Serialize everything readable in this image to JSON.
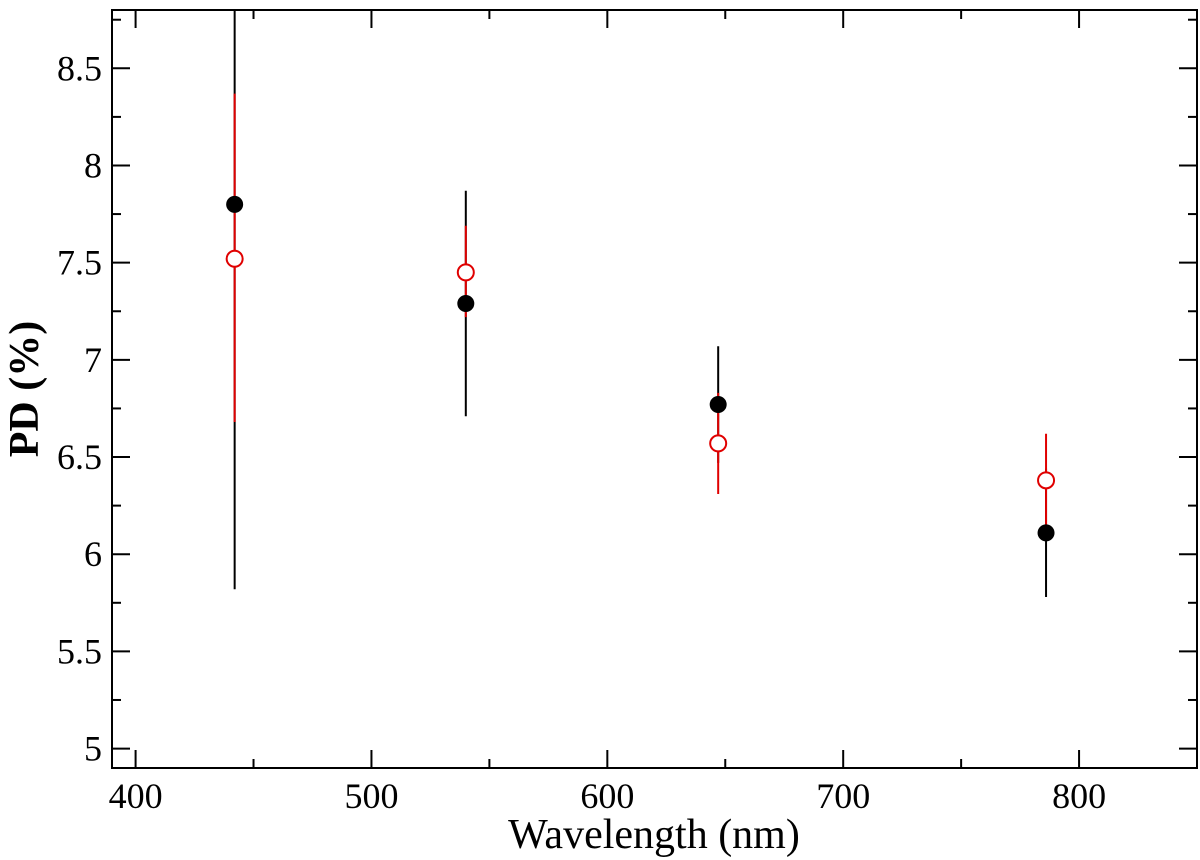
{
  "chart_data": {
    "type": "scatter",
    "title": "",
    "xlabel": "Wavelength (nm)",
    "ylabel": "PD (%)",
    "xlim": [
      390,
      850
    ],
    "ylim": [
      4.9,
      8.8
    ],
    "x_major_ticks": [
      400,
      500,
      600,
      700,
      800
    ],
    "x_minor_ticks": [
      450,
      550,
      650,
      750,
      850
    ],
    "y_major_ticks": [
      5,
      5.5,
      6,
      6.5,
      7,
      7.5,
      8,
      8.5
    ],
    "y_minor_ticks": [
      5.25,
      5.75,
      6.25,
      6.75,
      7.25,
      7.75,
      8.25,
      8.75
    ],
    "x_tick_labels": [
      "400",
      "500",
      "600",
      "700",
      "800"
    ],
    "y_tick_labels": [
      "5",
      "5.5",
      "6",
      "6.5",
      "7",
      "7.5",
      "8",
      "8.5"
    ],
    "grid": false,
    "legend": "none",
    "series": [
      {
        "marker": "filled-circle",
        "color": "#000000",
        "points": [
          {
            "x": 442,
            "y": 7.8,
            "yerr_low": 5.82,
            "yerr_high": 8.8
          },
          {
            "x": 540,
            "y": 7.29,
            "yerr_low": 6.71,
            "yerr_high": 7.87
          },
          {
            "x": 647,
            "y": 6.77,
            "yerr_low": 6.47,
            "yerr_high": 7.07
          },
          {
            "x": 786,
            "y": 6.11,
            "yerr_low": 5.78,
            "yerr_high": 6.44
          }
        ]
      },
      {
        "marker": "open-circle",
        "color": "#e00000",
        "points": [
          {
            "x": 442,
            "y": 7.52,
            "yerr_low": 6.68,
            "yerr_high": 8.37
          },
          {
            "x": 540,
            "y": 7.45,
            "yerr_low": 7.22,
            "yerr_high": 7.69
          },
          {
            "x": 647,
            "y": 6.57,
            "yerr_low": 6.31,
            "yerr_high": 6.83
          },
          {
            "x": 786,
            "y": 6.38,
            "yerr_low": 6.14,
            "yerr_high": 6.62
          }
        ]
      }
    ]
  }
}
